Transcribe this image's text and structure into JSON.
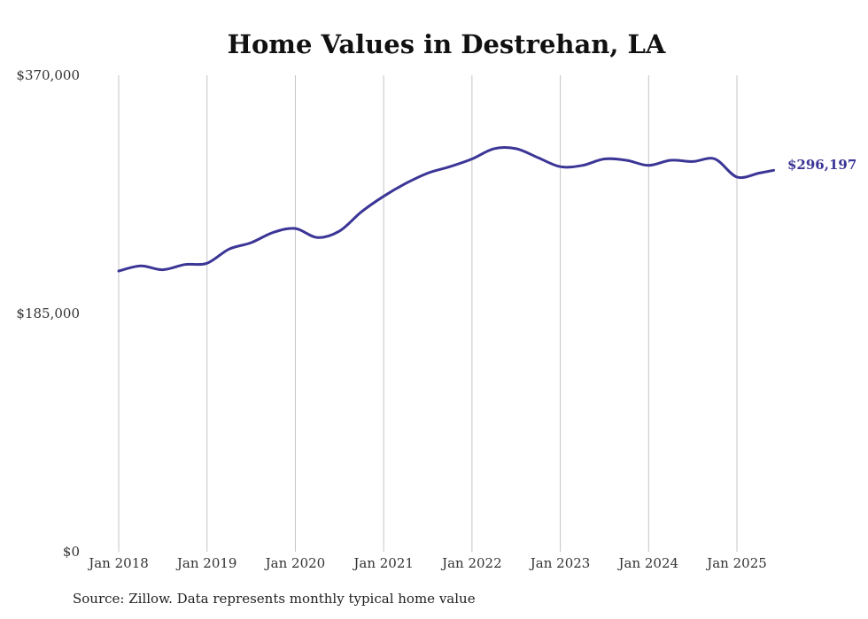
{
  "chart_data": {
    "type": "line",
    "title": "Home Values in Destrehan, LA",
    "xlabel": "",
    "ylabel": "",
    "ylim": [
      0,
      370000
    ],
    "y_ticks": [
      "$0",
      "$185,000",
      "$370,000"
    ],
    "y_tick_values": [
      0,
      185000,
      370000
    ],
    "x_ticks": [
      "Jan 2018",
      "Jan 2019",
      "Jan 2020",
      "Jan 2021",
      "Jan 2022",
      "Jan 2023",
      "Jan 2024",
      "Jan 2025"
    ],
    "x_tick_values": [
      "2018-01",
      "2019-01",
      "2020-01",
      "2021-01",
      "2022-01",
      "2023-01",
      "2024-01",
      "2025-01"
    ],
    "grid": "vertical",
    "line_color": "#3b3596",
    "end_label": "$296,197",
    "series": [
      {
        "x": [
          "2018-01",
          "2018-04",
          "2018-07",
          "2018-10",
          "2019-01",
          "2019-04",
          "2019-07",
          "2019-10",
          "2020-01",
          "2020-04",
          "2020-07",
          "2020-10",
          "2021-01",
          "2021-04",
          "2021-07",
          "2021-10",
          "2022-01",
          "2022-04",
          "2022-07",
          "2022-10",
          "2023-01",
          "2023-04",
          "2023-07",
          "2023-10",
          "2024-01",
          "2024-04",
          "2024-07",
          "2024-10",
          "2025-01",
          "2025-04",
          "2025-06"
        ],
        "values": [
          218000,
          222000,
          219000,
          223000,
          224000,
          235000,
          240000,
          248000,
          251000,
          244000,
          249000,
          264000,
          276000,
          286000,
          294000,
          299000,
          305000,
          313000,
          313000,
          306000,
          299000,
          300000,
          305000,
          304000,
          300000,
          304000,
          303000,
          305000,
          291000,
          294000,
          296197
        ]
      }
    ]
  },
  "source_note": "Source: Zillow. Data represents monthly typical home value"
}
